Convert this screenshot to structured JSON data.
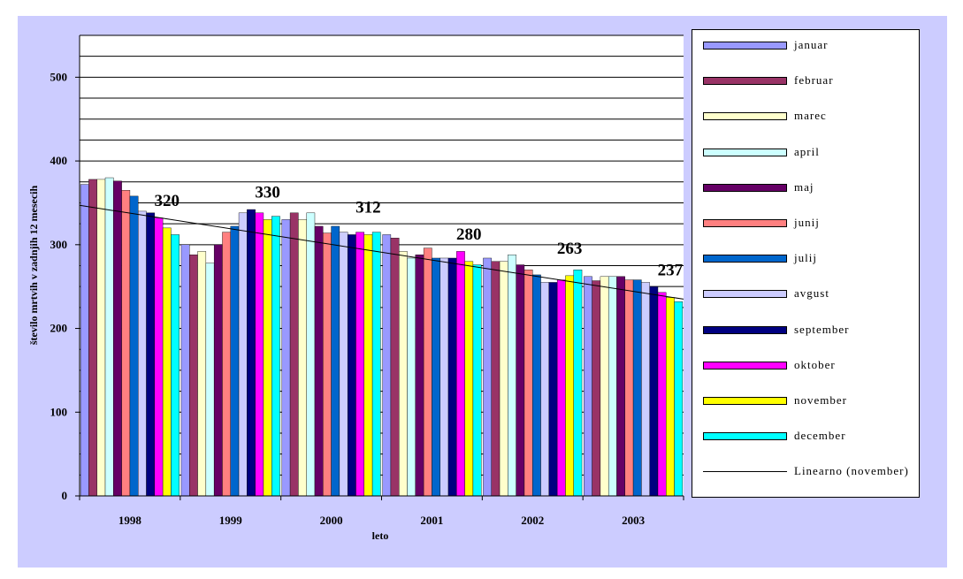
{
  "chart_data": {
    "type": "bar",
    "title": "",
    "xlabel": "leto",
    "ylabel": "število mrtvih v zadnjih 12 mesecih",
    "ylim": [
      0,
      550
    ],
    "yticks": [
      0,
      100,
      200,
      300,
      400,
      500
    ],
    "ytick_labels": [
      "0",
      "100",
      "200",
      "300",
      "400",
      "500"
    ],
    "grid": true,
    "legend_position": "right",
    "categories": [
      "1998",
      "1999",
      "2000",
      "2001",
      "2002",
      "2003"
    ],
    "series": [
      {
        "name": "januar",
        "color": "#9999ff",
        "values": [
          372,
          300,
          330,
          312,
          284,
          262
        ]
      },
      {
        "name": "februar",
        "color": "#993366",
        "values": [
          378,
          288,
          338,
          308,
          280,
          257
        ]
      },
      {
        "name": "marec",
        "color": "#ffffcc",
        "values": [
          378,
          292,
          330,
          292,
          280,
          262
        ]
      },
      {
        "name": "april",
        "color": "#ccffff",
        "values": [
          380,
          278,
          338,
          284,
          288,
          262
        ]
      },
      {
        "name": "maj",
        "color": "#660066",
        "values": [
          376,
          300,
          322,
          288,
          276,
          262
        ]
      },
      {
        "name": "junij",
        "color": "#ff8080",
        "values": [
          365,
          315,
          314,
          296,
          270,
          258
        ]
      },
      {
        "name": "julij",
        "color": "#0066cc",
        "values": [
          358,
          322,
          322,
          284,
          264,
          258
        ]
      },
      {
        "name": "avgust",
        "color": "#ccccff",
        "values": [
          340,
          338,
          315,
          284,
          255,
          255
        ]
      },
      {
        "name": "september",
        "color": "#000080",
        "values": [
          338,
          342,
          312,
          284,
          255,
          250
        ]
      },
      {
        "name": "oktober",
        "color": "#ff00ff",
        "values": [
          332,
          338,
          315,
          292,
          258,
          243
        ]
      },
      {
        "name": "november",
        "color": "#ffff00",
        "values": [
          320,
          330,
          312,
          280,
          263,
          237
        ]
      },
      {
        "name": "december",
        "color": "#00ffff",
        "values": [
          312,
          334,
          315,
          276,
          270,
          232
        ]
      }
    ],
    "trendline": {
      "name": "Linearno (november)",
      "color": "#000000",
      "start": 347,
      "end": 235
    },
    "annotations": [
      {
        "category": "1998",
        "text": "320"
      },
      {
        "category": "1999",
        "text": "330"
      },
      {
        "category": "2000",
        "text": "312"
      },
      {
        "category": "2001",
        "text": "280"
      },
      {
        "category": "2002",
        "text": "263"
      },
      {
        "category": "2003",
        "text": "237"
      }
    ]
  },
  "colors": {
    "frame_background": "#ccccff",
    "plot_background": "#ffffff",
    "gridline": "#000000"
  }
}
